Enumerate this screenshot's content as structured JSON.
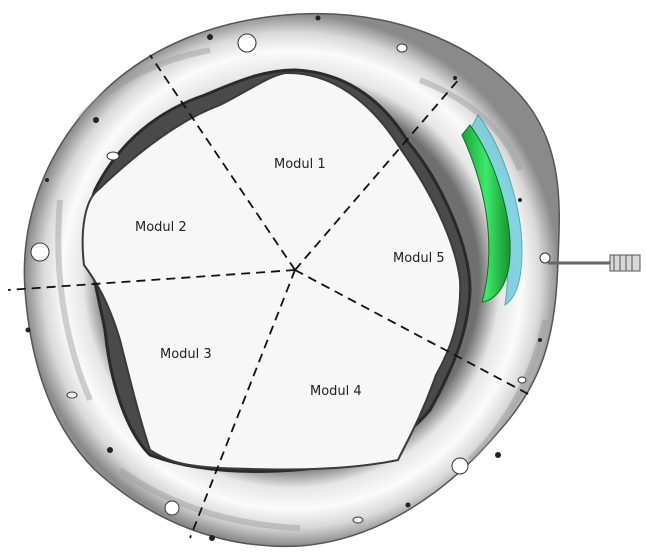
{
  "modules": [
    {
      "id": "modul-1",
      "label": "Modul 1"
    },
    {
      "id": "modul-2",
      "label": "Modul 2"
    },
    {
      "id": "modul-3",
      "label": "Modul 3"
    },
    {
      "id": "modul-4",
      "label": "Modul 4"
    },
    {
      "id": "modul-5",
      "label": "Modul 5"
    }
  ],
  "colors": {
    "background": "#ffffff",
    "shell_light": "#f2f2f2",
    "shell_mid": "#c8c8c8",
    "shell_dark": "#5a5a5a",
    "inner_plate": "#f7f7f7",
    "divider": "#111111",
    "insert_green": "#2bd14a",
    "insert_cyan": "#5fc7d8"
  },
  "icons": [
    "probe-icon"
  ]
}
